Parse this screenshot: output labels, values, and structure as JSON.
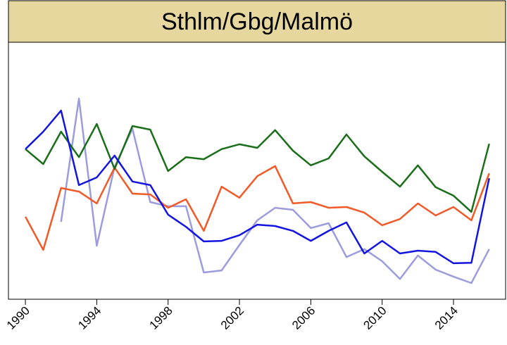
{
  "chart_data": {
    "type": "line",
    "title": "Sthlm/Gbg/Malmö",
    "x": [
      1990,
      1991,
      1992,
      1993,
      1994,
      1995,
      1996,
      1997,
      1998,
      1999,
      2000,
      2001,
      2002,
      2003,
      2004,
      2005,
      2006,
      2007,
      2008,
      2009,
      2010,
      2011,
      2012,
      2013,
      2014,
      2015,
      2016
    ],
    "xlim": [
      1989.05,
      2016.92
    ],
    "xticks": [
      1990,
      1994,
      1998,
      2002,
      2006,
      2010,
      2014
    ],
    "ylim": [
      0,
      100
    ],
    "series": [
      {
        "color": "#9c9cdc",
        "values": [
          null,
          null,
          30.1,
          78.1,
          20.8,
          51.5,
          66.3,
          37.8,
          36.2,
          36.2,
          10.4,
          11.2,
          21.1,
          30.7,
          35.6,
          34.8,
          27.7,
          29.6,
          16.4,
          19.5,
          14.8,
          7.9,
          17.0,
          11.5,
          8.8,
          6.3,
          19.5
        ]
      },
      {
        "color": "#f05a28",
        "values": [
          32.1,
          19.2,
          43.3,
          41.9,
          37.3,
          51.2,
          41.1,
          40.8,
          35.6,
          38.9,
          26.6,
          43.8,
          39.5,
          47.9,
          51.8,
          37.3,
          37.8,
          35.6,
          35.9,
          33.7,
          28.8,
          31.2,
          37.3,
          32.6,
          35.9,
          30.7,
          49.0
        ]
      },
      {
        "color": "#1a6e1a",
        "values": [
          58.4,
          52.6,
          65.2,
          55.3,
          68.2,
          50.7,
          67.4,
          66.0,
          49.9,
          55.3,
          54.5,
          58.4,
          60.3,
          58.9,
          65.8,
          57.8,
          52.1,
          54.8,
          64.1,
          55.6,
          49.6,
          43.8,
          52.1,
          43.6,
          40.3,
          34.0,
          60.5
        ]
      },
      {
        "color": "#1414e0",
        "values": [
          58.4,
          65.2,
          73.4,
          44.4,
          47.4,
          55.9,
          45.8,
          44.4,
          32.9,
          28.2,
          22.5,
          22.7,
          24.9,
          29.0,
          28.5,
          26.6,
          22.7,
          26.6,
          29.9,
          17.8,
          22.7,
          17.8,
          18.9,
          18.4,
          14.0,
          14.2,
          47.1
        ]
      }
    ]
  }
}
